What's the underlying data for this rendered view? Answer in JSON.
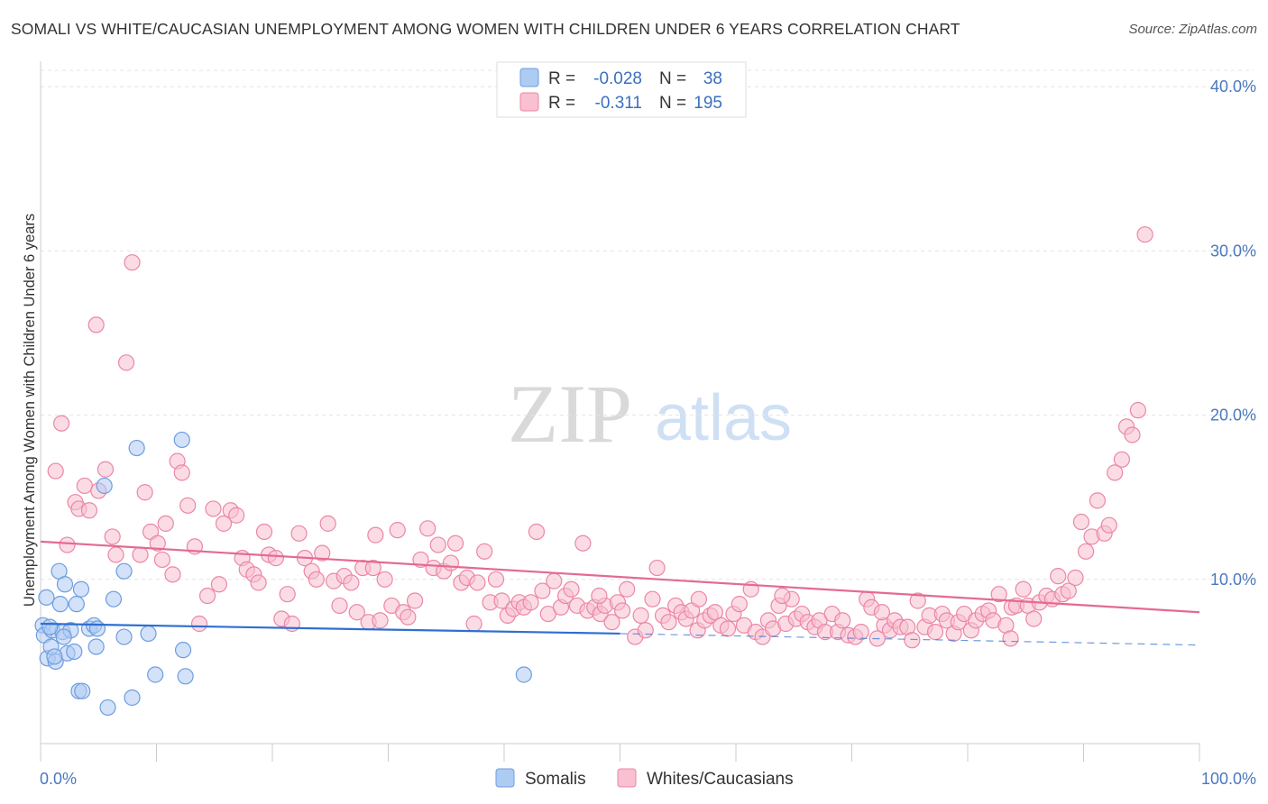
{
  "title": "SOMALI VS WHITE/CAUCASIAN UNEMPLOYMENT AMONG WOMEN WITH CHILDREN UNDER 6 YEARS CORRELATION CHART",
  "source": "Source: ZipAtlas.com",
  "watermark": {
    "zip": "ZIP",
    "atlas": "atlas"
  },
  "colors": {
    "somali_fill": "#aecbf2",
    "somali_stroke": "#6d9de0",
    "somali_line": "#2f6fd0",
    "white_fill": "#f8c0d0",
    "white_stroke": "#ec86a6",
    "white_line": "#e36a93",
    "axis_label": "#4a78c0"
  },
  "chart_data": {
    "type": "scatter",
    "title": "SOMALI VS WHITE/CAUCASIAN UNEMPLOYMENT AMONG WOMEN WITH CHILDREN UNDER 6 YEARS CORRELATION CHART",
    "xlabel": "",
    "ylabel": "Unemployment Among Women with Children Under 6 years",
    "xlim": [
      0,
      100
    ],
    "ylim": [
      0,
      41
    ],
    "x_tick_labels": {
      "min": "0.0%",
      "max": "100.0%"
    },
    "y_ticks": [
      10,
      20,
      30,
      40
    ],
    "y_tick_labels": [
      "10.0%",
      "20.0%",
      "30.0%",
      "40.0%"
    ],
    "grid": true,
    "legend": {
      "position": "top-center",
      "rows": [
        {
          "r_label": "R =",
          "r_value": "-0.028",
          "n_label": "N =",
          "n_value": "38"
        },
        {
          "r_label": "R =",
          "r_value": "-0.311",
          "n_label": "N =",
          "n_value": "195"
        }
      ]
    },
    "series": [
      {
        "name": "Somalis",
        "r": -0.028,
        "n": 38,
        "trend": {
          "x0": 0,
          "y0": 7.3,
          "x1": 50,
          "y1": 6.7,
          "dash_to_x": 100,
          "dash_to_y": 6.0
        },
        "points": [
          [
            0.2,
            7.2
          ],
          [
            0.3,
            6.6
          ],
          [
            0.5,
            8.9
          ],
          [
            0.6,
            5.2
          ],
          [
            0.9,
            5.9
          ],
          [
            1.0,
            6.9
          ],
          [
            1.3,
            5.0
          ],
          [
            1.6,
            10.5
          ],
          [
            1.7,
            8.5
          ],
          [
            1.9,
            6.8
          ],
          [
            2.1,
            9.7
          ],
          [
            2.3,
            5.5
          ],
          [
            2.6,
            6.9
          ],
          [
            2.9,
            5.6
          ],
          [
            3.1,
            8.5
          ],
          [
            3.3,
            3.2
          ],
          [
            3.5,
            9.4
          ],
          [
            3.6,
            3.2
          ],
          [
            4.2,
            7.0
          ],
          [
            4.6,
            7.2
          ],
          [
            4.8,
            5.9
          ],
          [
            4.9,
            7.0
          ],
          [
            5.5,
            15.7
          ],
          [
            5.8,
            2.2
          ],
          [
            6.3,
            8.8
          ],
          [
            7.2,
            6.5
          ],
          [
            7.2,
            10.5
          ],
          [
            7.9,
            2.8
          ],
          [
            8.3,
            18.0
          ],
          [
            9.3,
            6.7
          ],
          [
            9.9,
            4.2
          ],
          [
            12.2,
            18.5
          ],
          [
            12.3,
            5.7
          ],
          [
            12.5,
            4.1
          ],
          [
            41.7,
            4.2
          ],
          [
            0.8,
            7.1
          ],
          [
            1.2,
            5.3
          ],
          [
            2.0,
            6.5
          ]
        ]
      },
      {
        "name": "Whites/Caucasians",
        "r": -0.311,
        "n": 195,
        "trend": {
          "x0": 0,
          "y0": 12.3,
          "x1": 100,
          "y1": 8.0
        },
        "points": [
          [
            1.3,
            16.6
          ],
          [
            1.8,
            19.5
          ],
          [
            2.3,
            12.1
          ],
          [
            3.0,
            14.7
          ],
          [
            3.3,
            14.3
          ],
          [
            3.8,
            15.7
          ],
          [
            4.2,
            14.2
          ],
          [
            4.8,
            25.5
          ],
          [
            5.0,
            15.4
          ],
          [
            5.6,
            16.7
          ],
          [
            6.2,
            12.6
          ],
          [
            6.5,
            11.5
          ],
          [
            7.4,
            23.2
          ],
          [
            7.9,
            29.3
          ],
          [
            8.6,
            11.5
          ],
          [
            9.0,
            15.3
          ],
          [
            9.5,
            12.9
          ],
          [
            10.1,
            12.2
          ],
          [
            10.5,
            11.2
          ],
          [
            10.8,
            13.4
          ],
          [
            11.4,
            10.3
          ],
          [
            11.8,
            17.2
          ],
          [
            12.2,
            16.5
          ],
          [
            12.7,
            14.5
          ],
          [
            13.3,
            12.0
          ],
          [
            13.7,
            7.3
          ],
          [
            14.4,
            9.0
          ],
          [
            14.9,
            14.3
          ],
          [
            15.4,
            9.7
          ],
          [
            15.8,
            13.4
          ],
          [
            16.4,
            14.2
          ],
          [
            16.9,
            13.9
          ],
          [
            17.4,
            11.3
          ],
          [
            17.8,
            10.6
          ],
          [
            18.4,
            10.3
          ],
          [
            18.8,
            9.8
          ],
          [
            19.3,
            12.9
          ],
          [
            19.7,
            11.5
          ],
          [
            20.3,
            11.3
          ],
          [
            20.8,
            7.6
          ],
          [
            21.3,
            9.1
          ],
          [
            21.7,
            7.3
          ],
          [
            22.3,
            12.8
          ],
          [
            22.8,
            11.3
          ],
          [
            23.4,
            10.5
          ],
          [
            23.8,
            10.0
          ],
          [
            24.3,
            11.6
          ],
          [
            24.8,
            13.4
          ],
          [
            25.3,
            9.9
          ],
          [
            25.8,
            8.4
          ],
          [
            26.2,
            10.2
          ],
          [
            26.8,
            9.8
          ],
          [
            27.3,
            8.0
          ],
          [
            27.8,
            10.7
          ],
          [
            28.3,
            7.4
          ],
          [
            28.7,
            10.7
          ],
          [
            29.3,
            7.5
          ],
          [
            29.7,
            10.0
          ],
          [
            30.3,
            8.4
          ],
          [
            30.8,
            13.0
          ],
          [
            31.3,
            8.0
          ],
          [
            31.7,
            7.7
          ],
          [
            32.3,
            8.7
          ],
          [
            32.8,
            11.2
          ],
          [
            33.4,
            13.1
          ],
          [
            33.9,
            10.7
          ],
          [
            34.3,
            12.1
          ],
          [
            34.8,
            10.5
          ],
          [
            35.4,
            11.0
          ],
          [
            35.8,
            12.2
          ],
          [
            36.3,
            9.8
          ],
          [
            36.8,
            10.1
          ],
          [
            37.4,
            7.3
          ],
          [
            37.7,
            9.8
          ],
          [
            38.3,
            11.7
          ],
          [
            38.8,
            8.6
          ],
          [
            39.3,
            10.0
          ],
          [
            39.8,
            8.7
          ],
          [
            40.3,
            7.8
          ],
          [
            40.8,
            8.2
          ],
          [
            41.3,
            8.6
          ],
          [
            41.7,
            8.3
          ],
          [
            42.3,
            8.6
          ],
          [
            42.8,
            12.9
          ],
          [
            43.3,
            9.3
          ],
          [
            43.8,
            7.9
          ],
          [
            44.3,
            9.9
          ],
          [
            44.9,
            8.3
          ],
          [
            45.3,
            9.0
          ],
          [
            45.8,
            9.4
          ],
          [
            46.3,
            8.4
          ],
          [
            46.8,
            12.2
          ],
          [
            47.2,
            8.1
          ],
          [
            47.8,
            8.3
          ],
          [
            48.3,
            7.9
          ],
          [
            48.7,
            8.4
          ],
          [
            49.3,
            7.4
          ],
          [
            49.8,
            8.6
          ],
          [
            50.2,
            8.1
          ],
          [
            50.6,
            9.4
          ],
          [
            51.3,
            6.5
          ],
          [
            51.8,
            7.8
          ],
          [
            52.2,
            6.9
          ],
          [
            52.8,
            8.8
          ],
          [
            53.2,
            10.7
          ],
          [
            53.7,
            7.8
          ],
          [
            54.2,
            7.4
          ],
          [
            54.8,
            8.4
          ],
          [
            55.3,
            8.0
          ],
          [
            55.7,
            7.6
          ],
          [
            56.2,
            8.1
          ],
          [
            56.7,
            6.9
          ],
          [
            57.3,
            7.5
          ],
          [
            57.8,
            7.8
          ],
          [
            58.2,
            8.0
          ],
          [
            58.7,
            7.2
          ],
          [
            59.3,
            7.0
          ],
          [
            59.8,
            7.9
          ],
          [
            60.3,
            8.5
          ],
          [
            60.7,
            7.2
          ],
          [
            61.3,
            9.4
          ],
          [
            61.7,
            6.8
          ],
          [
            62.3,
            6.5
          ],
          [
            62.8,
            7.5
          ],
          [
            63.2,
            7.0
          ],
          [
            63.7,
            8.4
          ],
          [
            64.3,
            7.3
          ],
          [
            64.8,
            8.8
          ],
          [
            65.2,
            7.6
          ],
          [
            65.7,
            7.9
          ],
          [
            66.2,
            7.4
          ],
          [
            66.8,
            7.1
          ],
          [
            67.2,
            7.5
          ],
          [
            67.7,
            6.8
          ],
          [
            68.3,
            7.9
          ],
          [
            68.8,
            6.8
          ],
          [
            69.2,
            7.5
          ],
          [
            69.7,
            6.6
          ],
          [
            70.3,
            6.5
          ],
          [
            70.8,
            6.8
          ],
          [
            71.3,
            8.8
          ],
          [
            71.7,
            8.3
          ],
          [
            72.2,
            6.4
          ],
          [
            72.8,
            7.2
          ],
          [
            73.3,
            6.9
          ],
          [
            73.7,
            7.5
          ],
          [
            74.2,
            7.1
          ],
          [
            74.8,
            7.1
          ],
          [
            75.2,
            6.3
          ],
          [
            75.7,
            8.7
          ],
          [
            76.3,
            7.1
          ],
          [
            76.7,
            7.8
          ],
          [
            77.2,
            6.8
          ],
          [
            77.8,
            7.9
          ],
          [
            78.2,
            7.5
          ],
          [
            78.8,
            6.7
          ],
          [
            79.2,
            7.4
          ],
          [
            79.7,
            7.9
          ],
          [
            80.3,
            6.9
          ],
          [
            80.7,
            7.5
          ],
          [
            81.3,
            7.9
          ],
          [
            81.8,
            8.1
          ],
          [
            82.2,
            7.5
          ],
          [
            82.7,
            9.1
          ],
          [
            83.3,
            7.2
          ],
          [
            83.8,
            8.3
          ],
          [
            84.2,
            8.4
          ],
          [
            84.8,
            9.4
          ],
          [
            85.2,
            8.4
          ],
          [
            85.7,
            7.6
          ],
          [
            86.2,
            8.6
          ],
          [
            86.8,
            9.0
          ],
          [
            87.3,
            8.8
          ],
          [
            87.8,
            10.2
          ],
          [
            88.2,
            9.1
          ],
          [
            88.7,
            9.3
          ],
          [
            89.3,
            10.1
          ],
          [
            89.8,
            13.5
          ],
          [
            90.2,
            11.7
          ],
          [
            90.7,
            12.6
          ],
          [
            91.2,
            14.8
          ],
          [
            91.8,
            12.8
          ],
          [
            92.2,
            13.3
          ],
          [
            92.7,
            16.5
          ],
          [
            93.3,
            17.3
          ],
          [
            93.7,
            19.3
          ],
          [
            94.2,
            18.8
          ],
          [
            94.7,
            20.3
          ],
          [
            95.3,
            31.0
          ],
          [
            83.7,
            6.4
          ],
          [
            72.6,
            8.0
          ],
          [
            64.0,
            9.0
          ],
          [
            56.8,
            8.8
          ],
          [
            48.2,
            9.0
          ],
          [
            28.9,
            12.7
          ]
        ]
      }
    ]
  },
  "bottom_legend": [
    "Somalis",
    "Whites/Caucasians"
  ]
}
